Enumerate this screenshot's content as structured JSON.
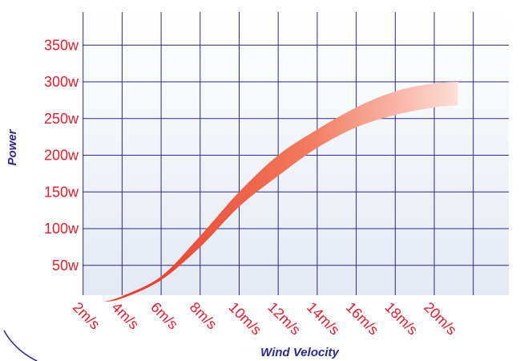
{
  "chart_data": {
    "type": "area",
    "title": "",
    "xlabel": "Wind Velocity",
    "ylabel": "Power",
    "x_tick_labels": [
      "2m/s",
      "4m/s",
      "6m/s",
      "8m/s",
      "10m/s",
      "12m/s",
      "14m/s",
      "16m/s",
      "18m/s",
      "20m/s"
    ],
    "y_tick_labels": [
      "50w",
      "100w",
      "150w",
      "200w",
      "250w",
      "300w",
      "350w"
    ],
    "xlim": [
      0,
      21.5
    ],
    "ylim": [
      0,
      400
    ],
    "grid": true,
    "series": [
      {
        "x": [
          3,
          4,
          6,
          8,
          10,
          12,
          14,
          16,
          18,
          20,
          21.2
        ],
        "upper": [
          0,
          8,
          35,
          90,
          150,
          200,
          235,
          265,
          287,
          298,
          300
        ],
        "lower": [
          0,
          5,
          30,
          75,
          130,
          172,
          210,
          238,
          255,
          265,
          268
        ]
      }
    ],
    "colors": {
      "gradient_start": "#e8402c",
      "gradient_end": "#ffffff",
      "grid_line": "#2a2a8c",
      "plot_background": "#eef2f8",
      "tick_text": "#e0202e",
      "axis_label": "#2a2a8c"
    }
  }
}
